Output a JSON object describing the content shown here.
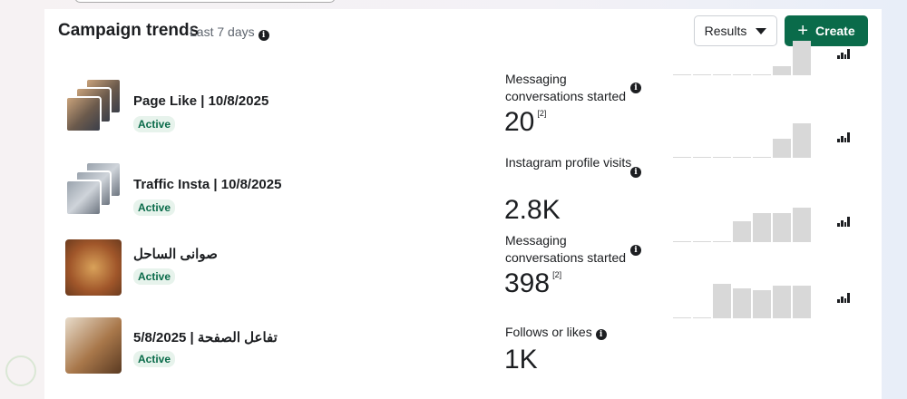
{
  "header": {
    "title": "Campaign trends",
    "period": "Last 7 days",
    "results_label": "Results",
    "create_label": "Create"
  },
  "colors": {
    "accent": "#0a6b4a",
    "badge_bg": "#e7f3ec",
    "bar": "#d8d8d8"
  },
  "campaigns": [
    {
      "name": "Page Like | 10/8/2025",
      "status": "Active",
      "metric": "Messaging conversations started",
      "value": "20",
      "footnote": "[2]",
      "trend": [
        0,
        0,
        0,
        0,
        0,
        0.25,
        1
      ]
    },
    {
      "name": "Traffic Insta | 10/8/2025",
      "status": "Active",
      "metric": "Instagram profile visits",
      "value": "2.8K",
      "footnote": "",
      "trend": [
        0,
        0,
        0,
        0,
        0,
        0.55,
        1
      ]
    },
    {
      "name": "صوانى الساحل",
      "status": "Active",
      "metric": "Messaging conversations started",
      "value": "398",
      "footnote": "[2]",
      "trend": [
        0,
        0,
        0,
        0.6,
        0.84,
        0.84,
        1
      ]
    },
    {
      "name": "تفاعل الصفحة | 5/8/2025",
      "status": "Active",
      "metric": "Follows or likes",
      "value": "1K",
      "footnote": "",
      "trend": [
        0,
        0,
        1,
        0.86,
        0.81,
        0.96,
        0.94
      ]
    }
  ]
}
